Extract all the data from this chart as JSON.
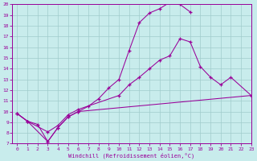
{
  "xlabel": "Windchill (Refroidissement éolien,°C)",
  "bg_color": "#c8ecec",
  "line_color": "#990099",
  "grid_color": "#a0cccc",
  "xlim": [
    -0.5,
    23
  ],
  "ylim": [
    7,
    20
  ],
  "yticks": [
    7,
    8,
    9,
    10,
    11,
    12,
    13,
    14,
    15,
    16,
    17,
    18,
    19,
    20
  ],
  "xticks": [
    0,
    1,
    2,
    3,
    4,
    5,
    6,
    7,
    8,
    9,
    10,
    11,
    12,
    13,
    14,
    15,
    16,
    17,
    18,
    19,
    20,
    21,
    22,
    23
  ],
  "curve1_x": [
    0,
    1,
    2,
    3,
    4,
    5,
    6,
    7,
    8,
    9,
    10,
    11,
    12,
    13,
    14,
    15,
    16,
    17
  ],
  "curve1_y": [
    9.8,
    9.1,
    8.8,
    7.2,
    8.5,
    9.5,
    10.0,
    10.5,
    11.2,
    12.2,
    13.0,
    15.7,
    18.3,
    19.2,
    19.6,
    20.2,
    20.0,
    19.3
  ],
  "curve2_x": [
    0,
    1,
    3,
    4,
    5,
    6,
    10,
    11,
    12,
    13,
    14,
    15,
    16,
    17,
    18,
    19,
    20,
    21,
    23
  ],
  "curve2_y": [
    9.8,
    9.1,
    8.1,
    8.7,
    9.7,
    10.2,
    11.5,
    12.5,
    13.2,
    14.0,
    14.8,
    15.2,
    16.8,
    16.5,
    14.2,
    13.2,
    12.5,
    13.2,
    11.5
  ],
  "curve3_x": [
    0,
    1,
    3,
    4,
    5,
    6,
    23
  ],
  "curve3_y": [
    9.8,
    9.1,
    7.2,
    8.5,
    9.5,
    10.0,
    11.5
  ]
}
